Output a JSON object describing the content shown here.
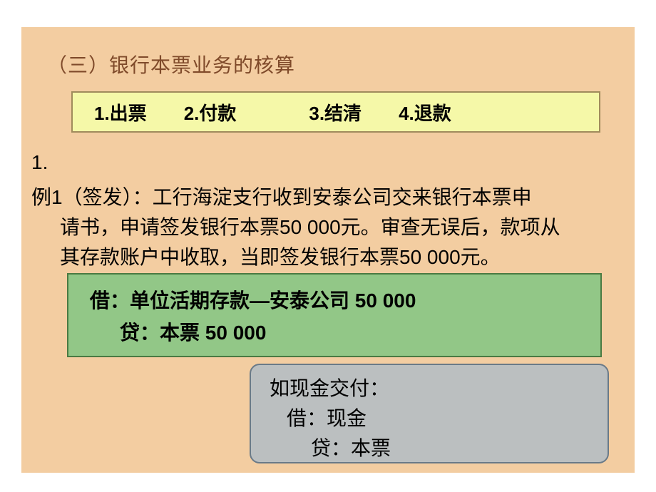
{
  "slide": {
    "background": "#f3cda1",
    "title": "（三）银行本票业务的核算",
    "title_color": "#7f4a2a",
    "title_fontsize": 28
  },
  "yellowBox": {
    "background": "#f5f8a8",
    "border_color": "#a08b5c",
    "items": [
      "1.出票",
      "2.付款",
      "3.结清",
      "4.退款"
    ],
    "fontsize": 26,
    "font_weight": "bold"
  },
  "numLabel": "1.",
  "bodyText": {
    "line1": "例1（签发）：工行海淀支行收到安泰公司交来银行本票申",
    "line2": "请书，申请签发银行本票50 000元。审查无误后，款项从",
    "line3": "其存款账户中收取，当即签发银行本票50 000元。",
    "fontsize": 28,
    "color": "#000000"
  },
  "greenBox": {
    "background": "#92c787",
    "border_color": "#4a7a42",
    "line1": "借：单位活期存款—安泰公司  50 000",
    "line2": "贷：本票        50 000",
    "fontsize": 28
  },
  "grayBox": {
    "background": "#bbbfc0",
    "border_color": "#6a7a88",
    "border_radius": 14,
    "line1": "如现金交付：",
    "line2": "借：现金",
    "line3": "贷：本票",
    "fontsize": 28
  }
}
